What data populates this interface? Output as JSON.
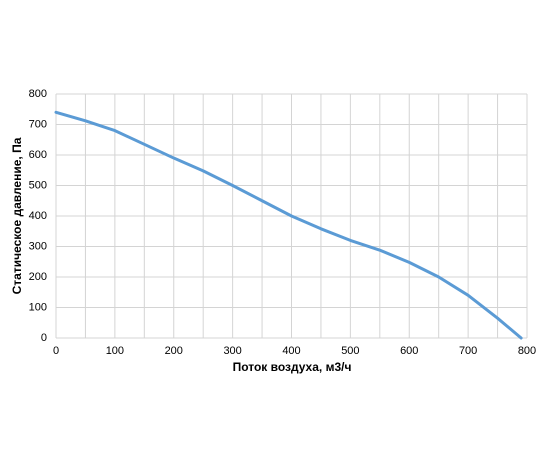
{
  "chart_data": {
    "type": "line",
    "x_label": "Поток воздуха, м3/ч",
    "y_label": "Статическое давление, Па",
    "series": [
      {
        "color": "#5b9bd5",
        "x": [
          0,
          50,
          100,
          150,
          200,
          250,
          300,
          350,
          400,
          450,
          500,
          550,
          600,
          650,
          700,
          750,
          790
        ],
        "values": [
          740,
          712,
          680,
          635,
          590,
          548,
          500,
          450,
          400,
          358,
          320,
          288,
          248,
          200,
          140,
          65,
          0
        ]
      }
    ],
    "xlim": [
      0,
      800
    ],
    "xticks": [
      0,
      100,
      200,
      300,
      400,
      500,
      600,
      700,
      800
    ],
    "x_minor_grid": [
      50,
      150,
      250,
      350,
      450,
      550,
      650,
      750
    ],
    "ylim": [
      0,
      800
    ],
    "yticks": [
      0,
      100,
      200,
      300,
      400,
      500,
      600,
      700,
      800
    ],
    "grid": true
  }
}
